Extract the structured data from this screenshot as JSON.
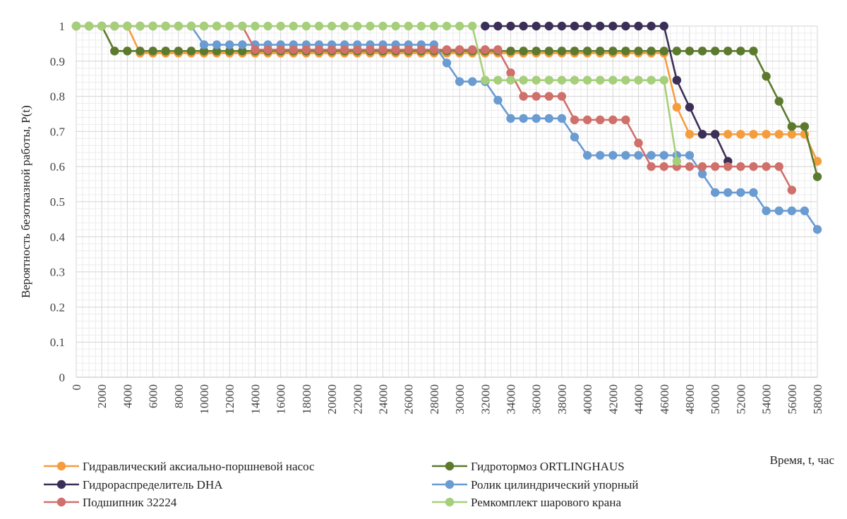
{
  "chart_data": {
    "type": "line",
    "title": "",
    "xlabel": "Время, t, час",
    "ylabel": "Вероятность безотказной работы, P(t)",
    "xlim": [
      0,
      58000
    ],
    "ylim": [
      0,
      1
    ],
    "grid": true,
    "legend_position": "bottom",
    "x_ticks": [
      "0",
      "2000",
      "4000",
      "6000",
      "8000",
      "10000",
      "12000",
      "14000",
      "16000",
      "18000",
      "20000",
      "22000",
      "24000",
      "26000",
      "28000",
      "30000",
      "32000",
      "34000",
      "36000",
      "38000",
      "40000",
      "42000",
      "44000",
      "46000",
      "48000",
      "50000",
      "52000",
      "54000",
      "56000",
      "58000"
    ],
    "y_ticks": [
      "0",
      "0.1",
      "0.2",
      "0.3",
      "0.4",
      "0.5",
      "0.6",
      "0.7",
      "0.8",
      "0.9",
      "1"
    ],
    "series": [
      {
        "name": "Гидравлический аксиально-поршневой насос",
        "color": "#f59d3d",
        "points": [
          [
            0,
            1
          ],
          [
            1000,
            1
          ],
          [
            2000,
            1
          ],
          [
            3000,
            1
          ],
          [
            4000,
            1
          ],
          [
            5000,
            0.923
          ],
          [
            6000,
            0.923
          ],
          [
            7000,
            0.923
          ],
          [
            8000,
            0.923
          ],
          [
            9000,
            0.923
          ],
          [
            10000,
            0.923
          ],
          [
            11000,
            0.923
          ],
          [
            12000,
            0.923
          ],
          [
            13000,
            0.923
          ],
          [
            14000,
            0.923
          ],
          [
            15000,
            0.923
          ],
          [
            16000,
            0.923
          ],
          [
            17000,
            0.923
          ],
          [
            18000,
            0.923
          ],
          [
            19000,
            0.923
          ],
          [
            20000,
            0.923
          ],
          [
            21000,
            0.923
          ],
          [
            22000,
            0.923
          ],
          [
            23000,
            0.923
          ],
          [
            24000,
            0.923
          ],
          [
            25000,
            0.923
          ],
          [
            26000,
            0.923
          ],
          [
            27000,
            0.923
          ],
          [
            28000,
            0.923
          ],
          [
            29000,
            0.923
          ],
          [
            30000,
            0.923
          ],
          [
            31000,
            0.923
          ],
          [
            32000,
            0.923
          ],
          [
            33000,
            0.923
          ],
          [
            34000,
            0.923
          ],
          [
            35000,
            0.923
          ],
          [
            36000,
            0.923
          ],
          [
            37000,
            0.923
          ],
          [
            38000,
            0.923
          ],
          [
            39000,
            0.923
          ],
          [
            40000,
            0.923
          ],
          [
            41000,
            0.923
          ],
          [
            42000,
            0.923
          ],
          [
            43000,
            0.923
          ],
          [
            44000,
            0.923
          ],
          [
            45000,
            0.923
          ],
          [
            46000,
            0.923
          ],
          [
            47000,
            0.769
          ],
          [
            48000,
            0.692
          ],
          [
            49000,
            0.692
          ],
          [
            50000,
            0.692
          ],
          [
            51000,
            0.692
          ],
          [
            52000,
            0.692
          ],
          [
            53000,
            0.692
          ],
          [
            54000,
            0.692
          ],
          [
            55000,
            0.692
          ],
          [
            56000,
            0.692
          ],
          [
            57000,
            0.692
          ],
          [
            58000,
            0.615
          ]
        ]
      },
      {
        "name": "Гидротормоз ORTLINGHAUS",
        "color": "#5b7a2e",
        "points": [
          [
            0,
            1
          ],
          [
            1000,
            1
          ],
          [
            2000,
            1
          ],
          [
            3000,
            0.929
          ],
          [
            4000,
            0.929
          ],
          [
            5000,
            0.929
          ],
          [
            6000,
            0.929
          ],
          [
            7000,
            0.929
          ],
          [
            8000,
            0.929
          ],
          [
            9000,
            0.929
          ],
          [
            10000,
            0.929
          ],
          [
            11000,
            0.929
          ],
          [
            12000,
            0.929
          ],
          [
            13000,
            0.929
          ],
          [
            14000,
            0.929
          ],
          [
            15000,
            0.929
          ],
          [
            16000,
            0.929
          ],
          [
            17000,
            0.929
          ],
          [
            18000,
            0.929
          ],
          [
            19000,
            0.929
          ],
          [
            20000,
            0.929
          ],
          [
            21000,
            0.929
          ],
          [
            22000,
            0.929
          ],
          [
            23000,
            0.929
          ],
          [
            24000,
            0.929
          ],
          [
            25000,
            0.929
          ],
          [
            26000,
            0.929
          ],
          [
            27000,
            0.929
          ],
          [
            28000,
            0.929
          ],
          [
            29000,
            0.929
          ],
          [
            30000,
            0.929
          ],
          [
            31000,
            0.929
          ],
          [
            32000,
            0.929
          ],
          [
            33000,
            0.929
          ],
          [
            34000,
            0.929
          ],
          [
            35000,
            0.929
          ],
          [
            36000,
            0.929
          ],
          [
            37000,
            0.929
          ],
          [
            38000,
            0.929
          ],
          [
            39000,
            0.929
          ],
          [
            40000,
            0.929
          ],
          [
            41000,
            0.929
          ],
          [
            42000,
            0.929
          ],
          [
            43000,
            0.929
          ],
          [
            44000,
            0.929
          ],
          [
            45000,
            0.929
          ],
          [
            46000,
            0.929
          ],
          [
            47000,
            0.929
          ],
          [
            48000,
            0.929
          ],
          [
            49000,
            0.929
          ],
          [
            50000,
            0.929
          ],
          [
            51000,
            0.929
          ],
          [
            52000,
            0.929
          ],
          [
            53000,
            0.929
          ],
          [
            54000,
            0.857
          ],
          [
            55000,
            0.786
          ],
          [
            56000,
            0.714
          ],
          [
            57000,
            0.714
          ],
          [
            58000,
            0.571
          ]
        ]
      },
      {
        "name": "Гидрораспределитель DHA",
        "color": "#3c2f57",
        "points": [
          [
            32000,
            1
          ],
          [
            33000,
            1
          ],
          [
            34000,
            1
          ],
          [
            35000,
            1
          ],
          [
            36000,
            1
          ],
          [
            37000,
            1
          ],
          [
            38000,
            1
          ],
          [
            39000,
            1
          ],
          [
            40000,
            1
          ],
          [
            41000,
            1
          ],
          [
            42000,
            1
          ],
          [
            43000,
            1
          ],
          [
            44000,
            1
          ],
          [
            45000,
            1
          ],
          [
            46000,
            1
          ],
          [
            47000,
            0.846
          ],
          [
            48000,
            0.769
          ],
          [
            49000,
            0.692
          ],
          [
            50000,
            0.692
          ],
          [
            51000,
            0.615
          ]
        ]
      },
      {
        "name": "Ролик цилиндрический упорный",
        "color": "#6a9bd1",
        "points": [
          [
            0,
            1
          ],
          [
            1000,
            1
          ],
          [
            2000,
            1
          ],
          [
            3000,
            1
          ],
          [
            4000,
            1
          ],
          [
            5000,
            1
          ],
          [
            6000,
            1
          ],
          [
            7000,
            1
          ],
          [
            8000,
            1
          ],
          [
            9000,
            1
          ],
          [
            10000,
            0.947
          ],
          [
            11000,
            0.947
          ],
          [
            12000,
            0.947
          ],
          [
            13000,
            0.947
          ],
          [
            14000,
            0.947
          ],
          [
            15000,
            0.947
          ],
          [
            16000,
            0.947
          ],
          [
            17000,
            0.947
          ],
          [
            18000,
            0.947
          ],
          [
            19000,
            0.947
          ],
          [
            20000,
            0.947
          ],
          [
            21000,
            0.947
          ],
          [
            22000,
            0.947
          ],
          [
            23000,
            0.947
          ],
          [
            24000,
            0.947
          ],
          [
            25000,
            0.947
          ],
          [
            26000,
            0.947
          ],
          [
            27000,
            0.947
          ],
          [
            28000,
            0.947
          ],
          [
            29000,
            0.895
          ],
          [
            30000,
            0.842
          ],
          [
            31000,
            0.842
          ],
          [
            32000,
            0.842
          ],
          [
            33000,
            0.789
          ],
          [
            34000,
            0.737
          ],
          [
            35000,
            0.737
          ],
          [
            36000,
            0.737
          ],
          [
            37000,
            0.737
          ],
          [
            38000,
            0.737
          ],
          [
            39000,
            0.684
          ],
          [
            40000,
            0.632
          ],
          [
            41000,
            0.632
          ],
          [
            42000,
            0.632
          ],
          [
            43000,
            0.632
          ],
          [
            44000,
            0.632
          ],
          [
            45000,
            0.632
          ],
          [
            46000,
            0.632
          ],
          [
            47000,
            0.632
          ],
          [
            48000,
            0.632
          ],
          [
            49000,
            0.579
          ],
          [
            50000,
            0.526
          ],
          [
            51000,
            0.526
          ],
          [
            52000,
            0.526
          ],
          [
            53000,
            0.526
          ],
          [
            54000,
            0.474
          ],
          [
            55000,
            0.474
          ],
          [
            56000,
            0.474
          ],
          [
            57000,
            0.474
          ],
          [
            58000,
            0.421
          ]
        ]
      },
      {
        "name": "Подшипник 32224",
        "color": "#d0706b",
        "points": [
          [
            0,
            1
          ],
          [
            1000,
            1
          ],
          [
            2000,
            1
          ],
          [
            3000,
            1
          ],
          [
            4000,
            1
          ],
          [
            5000,
            1
          ],
          [
            6000,
            1
          ],
          [
            7000,
            1
          ],
          [
            8000,
            1
          ],
          [
            9000,
            1
          ],
          [
            10000,
            1
          ],
          [
            11000,
            1
          ],
          [
            12000,
            1
          ],
          [
            13000,
            1
          ],
          [
            14000,
            0.933
          ],
          [
            15000,
            0.933
          ],
          [
            16000,
            0.933
          ],
          [
            17000,
            0.933
          ],
          [
            18000,
            0.933
          ],
          [
            19000,
            0.933
          ],
          [
            20000,
            0.933
          ],
          [
            21000,
            0.933
          ],
          [
            22000,
            0.933
          ],
          [
            23000,
            0.933
          ],
          [
            24000,
            0.933
          ],
          [
            25000,
            0.933
          ],
          [
            26000,
            0.933
          ],
          [
            27000,
            0.933
          ],
          [
            28000,
            0.933
          ],
          [
            29000,
            0.933
          ],
          [
            30000,
            0.933
          ],
          [
            31000,
            0.933
          ],
          [
            32000,
            0.933
          ],
          [
            33000,
            0.933
          ],
          [
            34000,
            0.867
          ],
          [
            35000,
            0.8
          ],
          [
            36000,
            0.8
          ],
          [
            37000,
            0.8
          ],
          [
            38000,
            0.8
          ],
          [
            39000,
            0.733
          ],
          [
            40000,
            0.733
          ],
          [
            41000,
            0.733
          ],
          [
            42000,
            0.733
          ],
          [
            43000,
            0.733
          ],
          [
            44000,
            0.667
          ],
          [
            45000,
            0.6
          ],
          [
            46000,
            0.6
          ],
          [
            47000,
            0.6
          ],
          [
            48000,
            0.6
          ],
          [
            49000,
            0.6
          ],
          [
            50000,
            0.6
          ],
          [
            51000,
            0.6
          ],
          [
            52000,
            0.6
          ],
          [
            53000,
            0.6
          ],
          [
            54000,
            0.6
          ],
          [
            55000,
            0.6
          ],
          [
            56000,
            0.533
          ]
        ]
      },
      {
        "name": "Ремкомплект шарового крана",
        "color": "#a6cf7b",
        "points": [
          [
            0,
            1
          ],
          [
            1000,
            1
          ],
          [
            2000,
            1
          ],
          [
            3000,
            1
          ],
          [
            4000,
            1
          ],
          [
            5000,
            1
          ],
          [
            6000,
            1
          ],
          [
            7000,
            1
          ],
          [
            8000,
            1
          ],
          [
            9000,
            1
          ],
          [
            10000,
            1
          ],
          [
            11000,
            1
          ],
          [
            12000,
            1
          ],
          [
            13000,
            1
          ],
          [
            14000,
            1
          ],
          [
            15000,
            1
          ],
          [
            16000,
            1
          ],
          [
            17000,
            1
          ],
          [
            18000,
            1
          ],
          [
            19000,
            1
          ],
          [
            20000,
            1
          ],
          [
            21000,
            1
          ],
          [
            22000,
            1
          ],
          [
            23000,
            1
          ],
          [
            24000,
            1
          ],
          [
            25000,
            1
          ],
          [
            26000,
            1
          ],
          [
            27000,
            1
          ],
          [
            28000,
            1
          ],
          [
            29000,
            1
          ],
          [
            30000,
            1
          ],
          [
            31000,
            1
          ],
          [
            32000,
            0.846
          ],
          [
            33000,
            0.846
          ],
          [
            34000,
            0.846
          ],
          [
            35000,
            0.846
          ],
          [
            36000,
            0.846
          ],
          [
            37000,
            0.846
          ],
          [
            38000,
            0.846
          ],
          [
            39000,
            0.846
          ],
          [
            40000,
            0.846
          ],
          [
            41000,
            0.846
          ],
          [
            42000,
            0.846
          ],
          [
            43000,
            0.846
          ],
          [
            44000,
            0.846
          ],
          [
            45000,
            0.846
          ],
          [
            46000,
            0.846
          ],
          [
            47000,
            0.615
          ]
        ]
      }
    ]
  }
}
